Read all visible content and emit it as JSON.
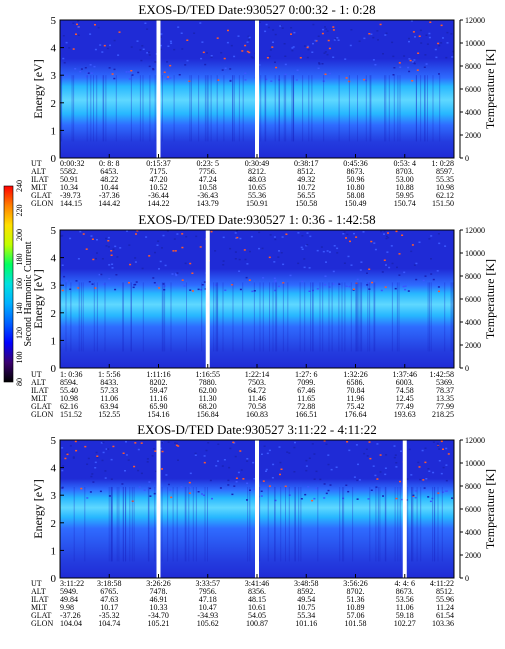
{
  "colors": {
    "background": "#ffffff",
    "spectrogram_base": "#1f2bd6",
    "spectrogram_mid": "#2f6cff",
    "spectrogram_band": "#27b7ff",
    "spectrogram_low": "#243cdf",
    "spectrogram_hot": "#ff5a2d",
    "gap": "#ffffff",
    "colorbar_stops": [
      "#000000",
      "#3a0070",
      "#0000ff",
      "#0060ff",
      "#00b0ff",
      "#00e0e0",
      "#00ff60",
      "#c0ff00",
      "#ffe000",
      "#ff8000",
      "#ff0000"
    ]
  },
  "chart_data": [
    {
      "type": "heatmap",
      "title": "EXOS-D/TED   Date:930527   0:00:32 - 1: 0:28",
      "ylabel": "Energy [eV]",
      "ylim": [
        0,
        5
      ],
      "y_ticks": [
        "0",
        "1",
        "2",
        "3",
        "4",
        "5"
      ],
      "right_ylabel": "Temperature [K]",
      "right_ylim": [
        0,
        12000
      ],
      "right_ticks": [
        "0",
        "2000",
        "4000",
        "6000",
        "8000",
        "10000",
        "12000"
      ],
      "x_ticks": [
        "0:00:32",
        "0: 8: 8",
        "0:15:37",
        "0:23: 5",
        "0:30:49",
        "0:38:17",
        "0:45:36",
        "0:53: 4",
        "1: 0:28"
      ],
      "orbit_rows": [
        {
          "label": "UT",
          "values": [
            "0:00:32",
            "0: 8: 8",
            "0:15:37",
            "0:23: 5",
            "0:30:49",
            "0:38:17",
            "0:45:36",
            "0:53: 4",
            "1: 0:28"
          ]
        },
        {
          "label": "ALT",
          "values": [
            "5582.",
            "6453.",
            "7175.",
            "7756.",
            "8212.",
            "8512.",
            "8673.",
            "8703.",
            "8597."
          ]
        },
        {
          "label": "ILAT",
          "values": [
            "50.91",
            "48.22",
            "47.20",
            "47.24",
            "48.03",
            "49.32",
            "50.96",
            "53.00",
            "55.35"
          ]
        },
        {
          "label": "MLT",
          "values": [
            "10.34",
            "10.44",
            "10.52",
            "10.58",
            "10.65",
            "10.72",
            "10.80",
            "10.88",
            "10.98"
          ]
        },
        {
          "label": "GLAT",
          "values": [
            "-39.73",
            "-37.36",
            "-36.44",
            "-36.43",
            "55.36",
            "56.55",
            "58.08",
            "59.95",
            "62.12"
          ]
        },
        {
          "label": "GLON",
          "values": [
            "144.15",
            "144.42",
            "144.22",
            "143.79",
            "150.91",
            "150.58",
            "150.49",
            "150.74",
            "151.50"
          ]
        }
      ],
      "data_gaps_ut": [
        "0:15:37",
        "0:30:49"
      ],
      "bright_band_energy_ev": [
        1.6,
        2.6
      ]
    },
    {
      "type": "heatmap",
      "title": "EXOS-D/TED   Date:930527   1: 0:36 - 1:42:58",
      "ylabel": "Energy [eV]",
      "ylim": [
        0,
        5
      ],
      "y_ticks": [
        "0",
        "1",
        "2",
        "3",
        "4",
        "5"
      ],
      "right_ylabel": "Temperature [K]",
      "right_ylim": [
        0,
        12000
      ],
      "right_ticks": [
        "0",
        "2000",
        "4000",
        "6000",
        "8000",
        "10000",
        "12000"
      ],
      "x_ticks": [
        "1: 0:36",
        "1: 5:56",
        "1:11:16",
        "1:16:55",
        "1:22:14",
        "1:27: 6",
        "1:32:26",
        "1:37:46",
        "1:42:58"
      ],
      "orbit_rows": [
        {
          "label": "UT",
          "values": [
            "1: 0:36",
            "1: 5:56",
            "1:11:16",
            "1:16:55",
            "1:22:14",
            "1:27: 6",
            "1:32:26",
            "1:37:46",
            "1:42:58"
          ]
        },
        {
          "label": "ALT",
          "values": [
            "8594.",
            "8433.",
            "8202.",
            "7880.",
            "7503.",
            "7099.",
            "6586.",
            "6003.",
            "5369."
          ]
        },
        {
          "label": "ILAT",
          "values": [
            "55.40",
            "57.33",
            "59.47",
            "62.00",
            "64.72",
            "67.46",
            "70.84",
            "74.58",
            "78.37"
          ]
        },
        {
          "label": "MLT",
          "values": [
            "10.98",
            "11.06",
            "11.16",
            "11.30",
            "11.46",
            "11.65",
            "11.96",
            "12.45",
            "13.35"
          ]
        },
        {
          "label": "GLAT",
          "values": [
            "62.16",
            "63.94",
            "65.90",
            "68.20",
            "70.58",
            "72.88",
            "75.42",
            "77.49",
            "77.99"
          ]
        },
        {
          "label": "GLON",
          "values": [
            "151.52",
            "152.55",
            "154.16",
            "156.84",
            "160.83",
            "166.51",
            "176.64",
            "193.63",
            "218.25"
          ]
        }
      ],
      "data_gaps_ut": [
        "1:16:55"
      ],
      "bright_band_energy_ev": [
        1.9,
        2.7
      ]
    },
    {
      "type": "heatmap",
      "title": "EXOS-D/TED   Date:930527   3:11:22 - 4:11:22",
      "ylabel": "Energy [eV]",
      "ylim": [
        0,
        5
      ],
      "y_ticks": [
        "0",
        "1",
        "2",
        "3",
        "4",
        "5"
      ],
      "right_ylabel": "Temperature [K]",
      "right_ylim": [
        0,
        12000
      ],
      "right_ticks": [
        "0",
        "2000",
        "4000",
        "6000",
        "8000",
        "10000",
        "12000"
      ],
      "x_ticks": [
        "3:11:22",
        "3:18:58",
        "3:26:26",
        "3:33:57",
        "3:41:46",
        "3:48:58",
        "3:56:26",
        "4: 4: 6",
        "4:11:22"
      ],
      "orbit_rows": [
        {
          "label": "UT",
          "values": [
            "3:11:22",
            "3:18:58",
            "3:26:26",
            "3:33:57",
            "3:41:46",
            "3:48:58",
            "3:56:26",
            "4: 4: 6",
            "4:11:22"
          ]
        },
        {
          "label": "ALT",
          "values": [
            "5949.",
            "6765.",
            "7478.",
            "7956.",
            "8356.",
            "8592.",
            "8702.",
            "8673.",
            "8512."
          ]
        },
        {
          "label": "ILAT",
          "values": [
            "49.84",
            "47.63",
            "46.91",
            "47.18",
            "48.15",
            "49.54",
            "51.36",
            "53.56",
            "55.96"
          ]
        },
        {
          "label": "MLT",
          "values": [
            "9.98",
            "10.17",
            "10.33",
            "10.47",
            "10.61",
            "10.75",
            "10.89",
            "11.06",
            "11.24"
          ]
        },
        {
          "label": "GLAT",
          "values": [
            "-37.26",
            "-35.32",
            "-34.70",
            "-34.93",
            "54.05",
            "55.34",
            "57.06",
            "59.18",
            "61.54"
          ]
        },
        {
          "label": "GLON",
          "values": [
            "104.04",
            "104.74",
            "105.21",
            "105.62",
            "100.87",
            "101.16",
            "101.58",
            "102.27",
            "103.36"
          ]
        }
      ],
      "data_gaps_ut": [
        "3:26:26",
        "3:41:46",
        "4: 4: 6"
      ],
      "bright_band_energy_ev": [
        2.2,
        2.9
      ]
    }
  ],
  "colorbar": {
    "label": "Second Harmonic Current",
    "ticks": [
      "80",
      "100",
      "120",
      "140",
      "160",
      "180",
      "200",
      "220",
      "240"
    ],
    "range": [
      80,
      240
    ]
  }
}
